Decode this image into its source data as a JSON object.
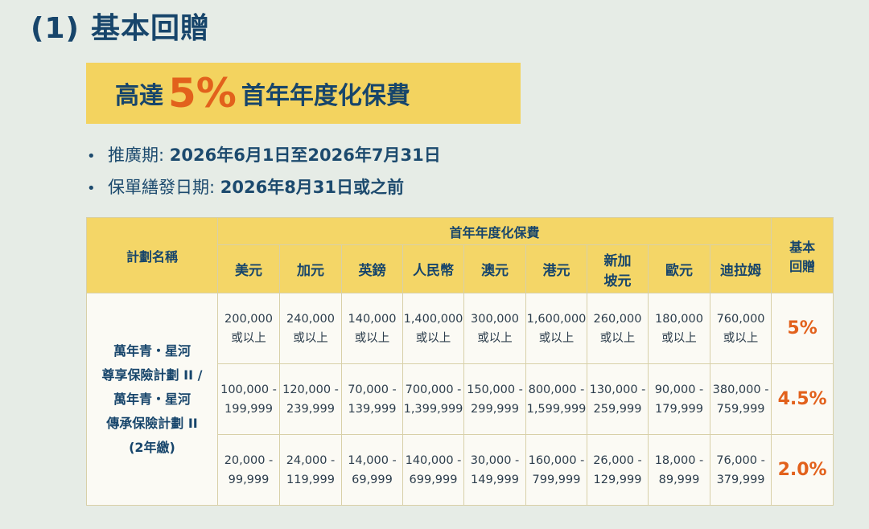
{
  "heading": {
    "number": "(1)",
    "title": "基本回贈"
  },
  "banner": {
    "prefix": "高達",
    "highlight": "5%",
    "suffix": "首年年度化保費"
  },
  "bullets": [
    {
      "label": "推廣期: ",
      "value": "2026年6月1日至2026年7月31日"
    },
    {
      "label": "保單繕發日期: ",
      "value": "2026年8月31日或之前"
    }
  ],
  "table": {
    "plan_header": "計劃名稱",
    "premium_header": "首年年度化保費",
    "reward_header": [
      "基本",
      "回贈"
    ],
    "currencies": [
      [
        "美元"
      ],
      [
        "加元"
      ],
      [
        "英鎊"
      ],
      [
        "人民幣"
      ],
      [
        "澳元"
      ],
      [
        "港元"
      ],
      [
        "新加",
        "坡元"
      ],
      [
        "歐元"
      ],
      [
        "迪拉姆"
      ]
    ],
    "plan_name": [
      "萬年青・星河",
      "尊享保險計劃 II /",
      "萬年青・星河",
      "傳承保險計劃 II",
      "(2年繳)"
    ],
    "rows": [
      {
        "cells": [
          [
            "200,000",
            "或以上"
          ],
          [
            "240,000",
            "或以上"
          ],
          [
            "140,000",
            "或以上"
          ],
          [
            "1,400,000",
            "或以上"
          ],
          [
            "300,000",
            "或以上"
          ],
          [
            "1,600,000",
            "或以上"
          ],
          [
            "260,000",
            "或以上"
          ],
          [
            "180,000",
            "或以上"
          ],
          [
            "760,000",
            "或以上"
          ]
        ],
        "reward": "5%"
      },
      {
        "cells": [
          [
            "100,000 -",
            "199,999"
          ],
          [
            "120,000 -",
            "239,999"
          ],
          [
            "70,000 -",
            "139,999"
          ],
          [
            "700,000 -",
            "1,399,999"
          ],
          [
            "150,000 -",
            "299,999"
          ],
          [
            "800,000 -",
            "1,599,999"
          ],
          [
            "130,000 -",
            "259,999"
          ],
          [
            "90,000 -",
            "179,999"
          ],
          [
            "380,000 -",
            "759,999"
          ]
        ],
        "reward": "4.5%"
      },
      {
        "cells": [
          [
            "20,000 -",
            "99,999"
          ],
          [
            "24,000 -",
            "119,999"
          ],
          [
            "14,000 -",
            "69,999"
          ],
          [
            "140,000 -",
            "699,999"
          ],
          [
            "30,000 -",
            "149,999"
          ],
          [
            "160,000 -",
            "799,999"
          ],
          [
            "26,000 -",
            "129,999"
          ],
          [
            "18,000 -",
            "89,999"
          ],
          [
            "76,000 -",
            "379,999"
          ]
        ],
        "reward": "2.0%"
      }
    ]
  }
}
